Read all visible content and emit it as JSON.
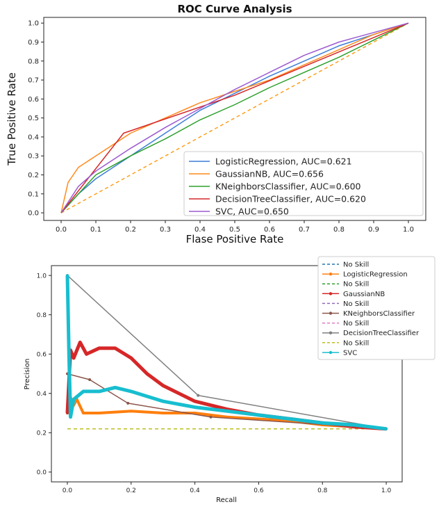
{
  "chart_data": [
    {
      "type": "line",
      "title": "ROC Curve Analysis",
      "xlabel": "Flase Positive Rate",
      "ylabel": "True Positive Rate",
      "xlim": [
        -0.05,
        1.05
      ],
      "ylim": [
        -0.04,
        1.03
      ],
      "x_ticks": [
        "0.0",
        "0.1",
        "0.2",
        "0.3",
        "0.4",
        "0.5",
        "0.6",
        "0.7",
        "0.8",
        "0.9",
        "1.0"
      ],
      "y_ticks": [
        "0.0",
        "0.1",
        "0.2",
        "0.3",
        "0.4",
        "0.5",
        "0.6",
        "0.7",
        "0.8",
        "0.9",
        "1.0"
      ],
      "grid": false,
      "legend_position": "lower-right",
      "baseline": {
        "style": "dashed",
        "color": "#ff9f1c",
        "points": [
          [
            0,
            0
          ],
          [
            1,
            1
          ]
        ]
      },
      "series": [
        {
          "name": "LogisticRegression, AUC=0.621",
          "color": "#3b7dd8",
          "points": [
            [
              0,
              0
            ],
            [
              0.05,
              0.1
            ],
            [
              0.1,
              0.18
            ],
            [
              0.2,
              0.3
            ],
            [
              0.3,
              0.42
            ],
            [
              0.4,
              0.54
            ],
            [
              0.5,
              0.63
            ],
            [
              0.6,
              0.72
            ],
            [
              0.7,
              0.8
            ],
            [
              0.8,
              0.88
            ],
            [
              0.9,
              0.94
            ],
            [
              1,
              1
            ]
          ]
        },
        {
          "name": "GaussianNB, AUC=0.656",
          "color": "#ff8a1c",
          "points": [
            [
              0,
              0
            ],
            [
              0.02,
              0.16
            ],
            [
              0.05,
              0.24
            ],
            [
              0.1,
              0.3
            ],
            [
              0.2,
              0.42
            ],
            [
              0.3,
              0.5
            ],
            [
              0.4,
              0.58
            ],
            [
              0.5,
              0.64
            ],
            [
              0.6,
              0.7
            ],
            [
              0.7,
              0.78
            ],
            [
              0.8,
              0.86
            ],
            [
              0.9,
              0.94
            ],
            [
              1,
              1
            ]
          ]
        },
        {
          "name": "KNeighborsClassifier, AUC=0.600",
          "color": "#2ca02c",
          "points": [
            [
              0,
              0
            ],
            [
              0.1,
              0.2
            ],
            [
              0.2,
              0.3
            ],
            [
              0.3,
              0.39
            ],
            [
              0.4,
              0.49
            ],
            [
              0.5,
              0.57
            ],
            [
              0.6,
              0.66
            ],
            [
              0.7,
              0.74
            ],
            [
              0.8,
              0.82
            ],
            [
              0.9,
              0.91
            ],
            [
              1,
              1
            ]
          ]
        },
        {
          "name": "DecisionTreeClassifier, AUC=0.620",
          "color": "#d62728",
          "points": [
            [
              0,
              0
            ],
            [
              0.18,
              0.42
            ],
            [
              0.5,
              0.62
            ],
            [
              1,
              1
            ]
          ]
        },
        {
          "name": "SVC, AUC=0.650",
          "color": "#9b59d0",
          "points": [
            [
              0,
              0
            ],
            [
              0.05,
              0.14
            ],
            [
              0.1,
              0.22
            ],
            [
              0.2,
              0.34
            ],
            [
              0.3,
              0.45
            ],
            [
              0.4,
              0.55
            ],
            [
              0.5,
              0.65
            ],
            [
              0.6,
              0.74
            ],
            [
              0.7,
              0.83
            ],
            [
              0.8,
              0.9
            ],
            [
              0.9,
              0.95
            ],
            [
              1,
              1
            ]
          ]
        }
      ]
    },
    {
      "type": "line",
      "title": "",
      "xlabel": "Recall",
      "ylabel": "Precision",
      "xlim": [
        -0.05,
        1.05
      ],
      "ylim": [
        -0.05,
        1.05
      ],
      "x_ticks": [
        "0.0",
        "0.2",
        "0.4",
        "0.6",
        "0.8",
        "1.0"
      ],
      "y_ticks": [
        "0.0",
        "0.2",
        "0.4",
        "0.6",
        "0.8",
        "1.0"
      ],
      "grid": false,
      "legend_position": "top-right",
      "legend": [
        {
          "label": "No Skill",
          "style": "dashed",
          "color": "#1f77b4"
        },
        {
          "label": "LogisticRegression",
          "style": "marker",
          "color": "#ff7f0e"
        },
        {
          "label": "No Skill",
          "style": "dashed",
          "color": "#2ca02c"
        },
        {
          "label": "GaussianNB",
          "style": "marker",
          "color": "#d62728"
        },
        {
          "label": "No Skill",
          "style": "dashed",
          "color": "#9467bd"
        },
        {
          "label": "KNeighborsClassifier",
          "style": "marker",
          "color": "#8c564b"
        },
        {
          "label": "No Skill",
          "style": "dashed",
          "color": "#e377c2"
        },
        {
          "label": "DecisionTreeClassifier",
          "style": "marker",
          "color": "#7f7f7f"
        },
        {
          "label": "No Skill",
          "style": "dashed",
          "color": "#bcbd22"
        },
        {
          "label": "SVC",
          "style": "marker",
          "color": "#17becf"
        }
      ],
      "baseline": {
        "style": "dashed",
        "color": "#bcbd22",
        "points": [
          [
            0,
            0.22
          ],
          [
            1,
            0.22
          ]
        ]
      },
      "series": [
        {
          "name": "LogisticRegression",
          "color": "#ff7f0e",
          "width": 4,
          "points": [
            [
              0,
              0.3
            ],
            [
              0.01,
              0.38
            ],
            [
              0.02,
              0.34
            ],
            [
              0.03,
              0.37
            ],
            [
              0.05,
              0.3
            ],
            [
              0.1,
              0.3
            ],
            [
              0.2,
              0.31
            ],
            [
              0.3,
              0.3
            ],
            [
              0.4,
              0.3
            ],
            [
              0.5,
              0.28
            ],
            [
              0.6,
              0.27
            ],
            [
              0.7,
              0.26
            ],
            [
              0.8,
              0.24
            ],
            [
              0.9,
              0.23
            ],
            [
              1,
              0.22
            ]
          ]
        },
        {
          "name": "GaussianNB",
          "color": "#d62728",
          "width": 5,
          "points": [
            [
              0,
              0.3
            ],
            [
              0.01,
              0.62
            ],
            [
              0.02,
              0.58
            ],
            [
              0.04,
              0.66
            ],
            [
              0.06,
              0.6
            ],
            [
              0.1,
              0.63
            ],
            [
              0.15,
              0.63
            ],
            [
              0.2,
              0.58
            ],
            [
              0.25,
              0.5
            ],
            [
              0.3,
              0.44
            ],
            [
              0.4,
              0.36
            ],
            [
              0.5,
              0.32
            ],
            [
              0.6,
              0.29
            ],
            [
              0.7,
              0.27
            ],
            [
              0.8,
              0.25
            ],
            [
              0.9,
              0.23
            ],
            [
              1,
              0.22
            ]
          ]
        },
        {
          "name": "KNeighborsClassifier",
          "color": "#8c564b",
          "width": 1.5,
          "points": [
            [
              0,
              0.5
            ],
            [
              0.07,
              0.47
            ],
            [
              0.19,
              0.35
            ],
            [
              0.45,
              0.28
            ],
            [
              1,
              0.22
            ]
          ]
        },
        {
          "name": "DecisionTreeClassifier",
          "color": "#7f7f7f",
          "width": 1.5,
          "points": [
            [
              0,
              1.0
            ],
            [
              0.41,
              0.39
            ],
            [
              1,
              0.22
            ]
          ]
        },
        {
          "name": "SVC",
          "color": "#17becf",
          "width": 5,
          "points": [
            [
              0,
              1.0
            ],
            [
              0.005,
              0.6
            ],
            [
              0.01,
              0.28
            ],
            [
              0.02,
              0.37
            ],
            [
              0.05,
              0.41
            ],
            [
              0.1,
              0.41
            ],
            [
              0.15,
              0.43
            ],
            [
              0.2,
              0.41
            ],
            [
              0.3,
              0.36
            ],
            [
              0.4,
              0.33
            ],
            [
              0.5,
              0.31
            ],
            [
              0.6,
              0.29
            ],
            [
              0.7,
              0.27
            ],
            [
              0.8,
              0.25
            ],
            [
              0.9,
              0.24
            ],
            [
              1,
              0.22
            ]
          ]
        }
      ]
    }
  ]
}
